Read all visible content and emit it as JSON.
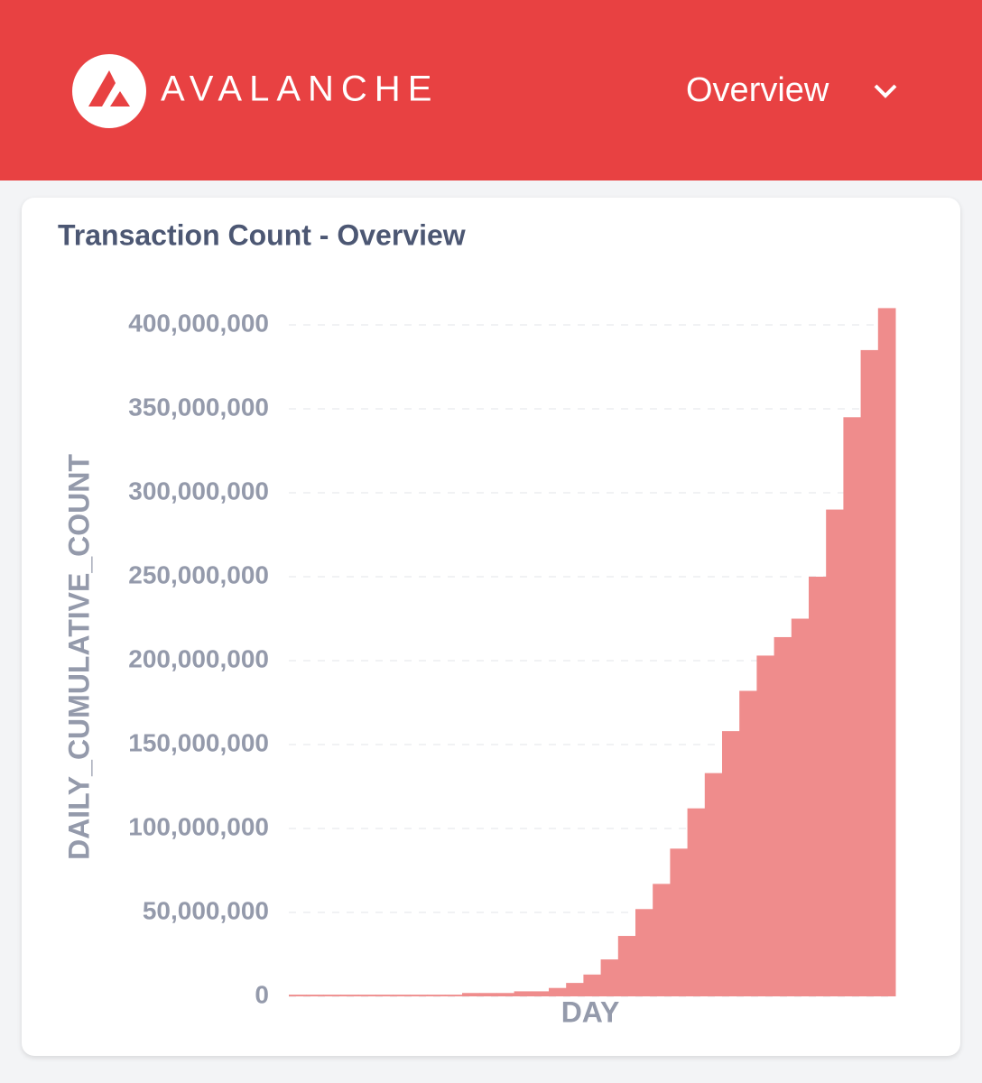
{
  "header": {
    "brand": "AVALANCHE",
    "menu": "Overview"
  },
  "chart_data": {
    "type": "bar",
    "title": "Transaction Count - Overview",
    "x_label": "DAY",
    "y_label": "DAILY_CUMULATIVE_COUNT",
    "color": "#ef8c8c",
    "categories": [
      null,
      null,
      null,
      null,
      null,
      null,
      null,
      null,
      null,
      null,
      null,
      null,
      null,
      null,
      null,
      null,
      null,
      null,
      null,
      null,
      null,
      null,
      null,
      null,
      null,
      null,
      null,
      null,
      null,
      null,
      null,
      null,
      null,
      null,
      null
    ],
    "values": [
      1000000,
      1000000,
      1000000,
      1000000,
      1000000,
      1000000,
      1000000,
      1000000,
      1000000,
      1000000,
      2000000,
      2000000,
      2000000,
      3000000,
      3000000,
      5000000,
      8000000,
      13000000,
      22000000,
      36000000,
      52000000,
      67000000,
      88000000,
      112000000,
      133000000,
      158000000,
      182000000,
      203000000,
      214000000,
      225000000,
      250000000,
      290000000,
      345000000,
      385000000,
      410000000
    ],
    "ylim": [
      0,
      420000000
    ],
    "yticks": [
      0,
      {
        "value": 50000000,
        "label": "50,000,000"
      },
      {
        "value": 100000000,
        "label": "100,000,000"
      },
      {
        "value": 150000000,
        "label": "150,000,000"
      },
      {
        "value": 200000000,
        "label": "200,000,000"
      },
      {
        "value": 250000000,
        "label": "250,000,000"
      },
      {
        "value": 300000000,
        "label": "300,000,000"
      },
      {
        "value": 350000000,
        "label": "350,000,000"
      },
      {
        "value": 400000000,
        "label": "400,000,000"
      }
    ],
    "grid": true
  }
}
